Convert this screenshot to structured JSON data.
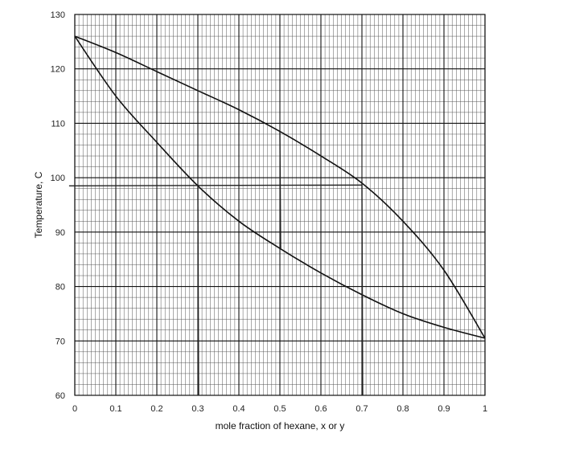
{
  "chart_data": {
    "type": "line",
    "title": "",
    "xlabel": "mole fraction of hexane, x or y",
    "ylabel": "Temperature, C",
    "xlim": [
      0,
      1
    ],
    "ylim": [
      60,
      130
    ],
    "x_ticks": [
      0,
      0.1,
      0.2,
      0.3,
      0.4,
      0.5,
      0.6,
      0.7,
      0.8,
      0.9,
      1
    ],
    "x_tick_labels": [
      "0",
      "0.1",
      "0.2",
      "0.3",
      "0.4",
      "0.5",
      "0.6",
      "0.7",
      "0.8",
      "0.9",
      "1"
    ],
    "y_ticks": [
      60,
      70,
      80,
      90,
      100,
      110,
      120,
      130
    ],
    "y_tick_labels": [
      "60",
      "70",
      "80",
      "90",
      "100",
      "110",
      "120",
      "130"
    ],
    "grid": true,
    "minor_grid_x_step": 0.01,
    "minor_grid_y_step": 2,
    "legend": "none",
    "series": [
      {
        "x": [
          0,
          0.1,
          0.2,
          0.3,
          0.4,
          0.5,
          0.6,
          0.7,
          0.8,
          0.9,
          1.0
        ],
        "y": [
          126,
          115,
          106.5,
          98.5,
          92,
          87,
          82.5,
          78.5,
          75,
          72.5,
          70.5
        ]
      },
      {
        "x": [
          0,
          0.1,
          0.2,
          0.3,
          0.4,
          0.5,
          0.6,
          0.7,
          0.8,
          0.9,
          1.0
        ],
        "y": [
          126,
          123,
          119.5,
          116,
          112.5,
          108.5,
          104,
          99,
          92,
          83,
          70.5
        ]
      }
    ],
    "annotations": {
      "horizontal_lines": [
        {
          "y": 98.5,
          "x_from": -0.01,
          "x_to": 0.7
        }
      ],
      "vertical_lines": [
        {
          "x": 0.3,
          "y_from": 98.5,
          "y_to": 60
        },
        {
          "x": 0.5,
          "y_from": 108.5,
          "y_to": 87
        },
        {
          "x": 0.7,
          "y_from": 99,
          "y_to": 60
        }
      ]
    }
  }
}
